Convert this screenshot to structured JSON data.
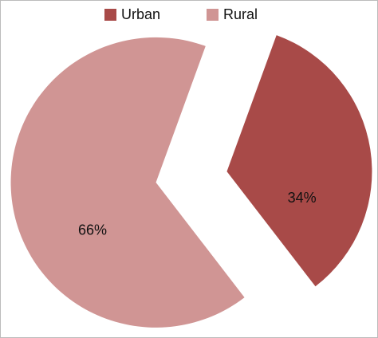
{
  "chart_data": {
    "type": "pie",
    "categories": [
      "Urban",
      "Rural"
    ],
    "values": [
      34,
      66
    ],
    "value_labels": [
      "34%",
      "66%"
    ],
    "colors": [
      "#a84a48",
      "#d09594"
    ],
    "legend": "top"
  }
}
